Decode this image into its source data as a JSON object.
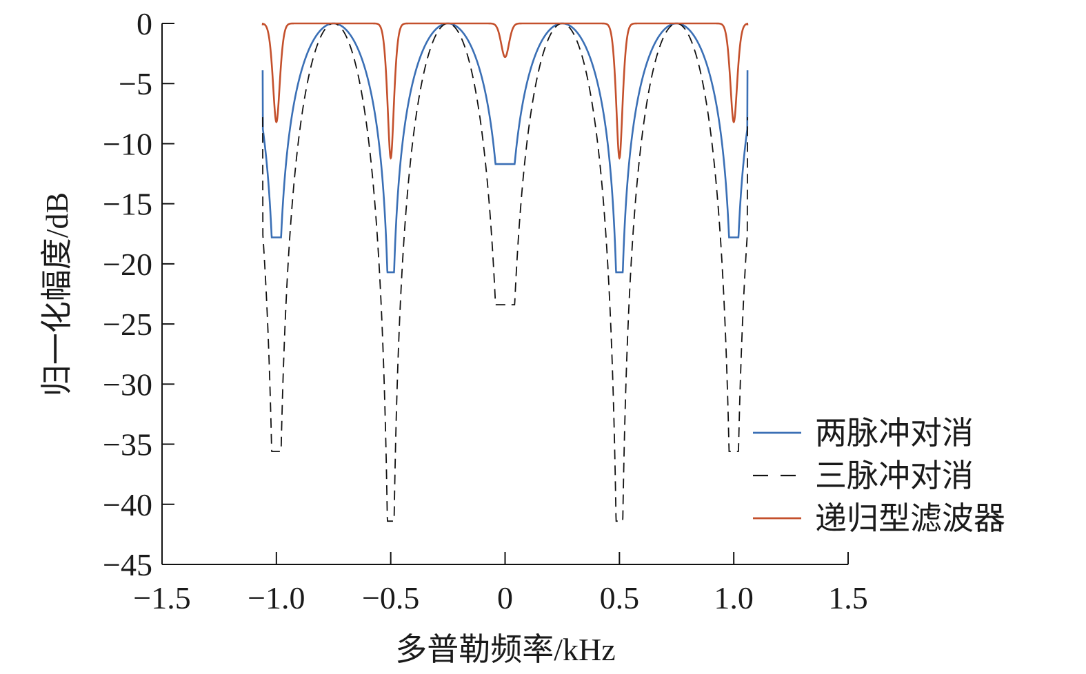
{
  "chart_data": {
    "type": "line",
    "title": "",
    "xlabel": "多普勒频率/kHz",
    "ylabel": "归一化幅度/dB",
    "xlim": [
      -1.5,
      1.5
    ],
    "ylim": [
      -45,
      0
    ],
    "xticks": [
      -1.5,
      -1.0,
      -0.5,
      0,
      0.5,
      1.0,
      1.5
    ],
    "xtick_labels": [
      "−1.5",
      "−1.0",
      "−0.5",
      "0",
      "0.5",
      "1.0",
      "1.5"
    ],
    "yticks": [
      0,
      -5,
      -10,
      -15,
      -20,
      -25,
      -30,
      -35,
      -40,
      -45
    ],
    "ytick_labels": [
      "0",
      "−5",
      "−10",
      "−15",
      "−20",
      "−25",
      "−30",
      "−35",
      "−40",
      "−45"
    ],
    "grid": false,
    "legend_position": "bottom-right",
    "frequency_range": [
      -1.06,
      1.06
    ],
    "series": [
      {
        "name": "两脉冲对消",
        "color": "#3a6fb5",
        "dash": "solid",
        "nulls": [
          {
            "x": -1.0,
            "y": -17.8
          },
          {
            "x": -0.5,
            "y": -20.7
          },
          {
            "x": 0.0,
            "y": -11.7
          },
          {
            "x": 0.5,
            "y": -20.7
          },
          {
            "x": 1.0,
            "y": -17.8
          }
        ],
        "endpoint_value": -3.9
      },
      {
        "name": "三脉冲对消",
        "color": "#111111",
        "dash": "dashed",
        "nulls": [
          {
            "x": -1.0,
            "y": -35.6
          },
          {
            "x": -0.5,
            "y": -41.4
          },
          {
            "x": 0.0,
            "y": -23.4
          },
          {
            "x": 0.5,
            "y": -41.4
          },
          {
            "x": 1.0,
            "y": -35.6
          }
        ],
        "endpoint_value": -7.8
      },
      {
        "name": "递归型滤波器",
        "color": "#c4502c",
        "dash": "solid",
        "nulls": [
          {
            "x": -1.0,
            "y": -8.2
          },
          {
            "x": -0.5,
            "y": -11.2
          },
          {
            "x": 0.0,
            "y": -2.8
          },
          {
            "x": 0.5,
            "y": -11.2
          },
          {
            "x": 1.0,
            "y": -8.2
          }
        ],
        "endpoint_value": -0.15
      }
    ]
  }
}
